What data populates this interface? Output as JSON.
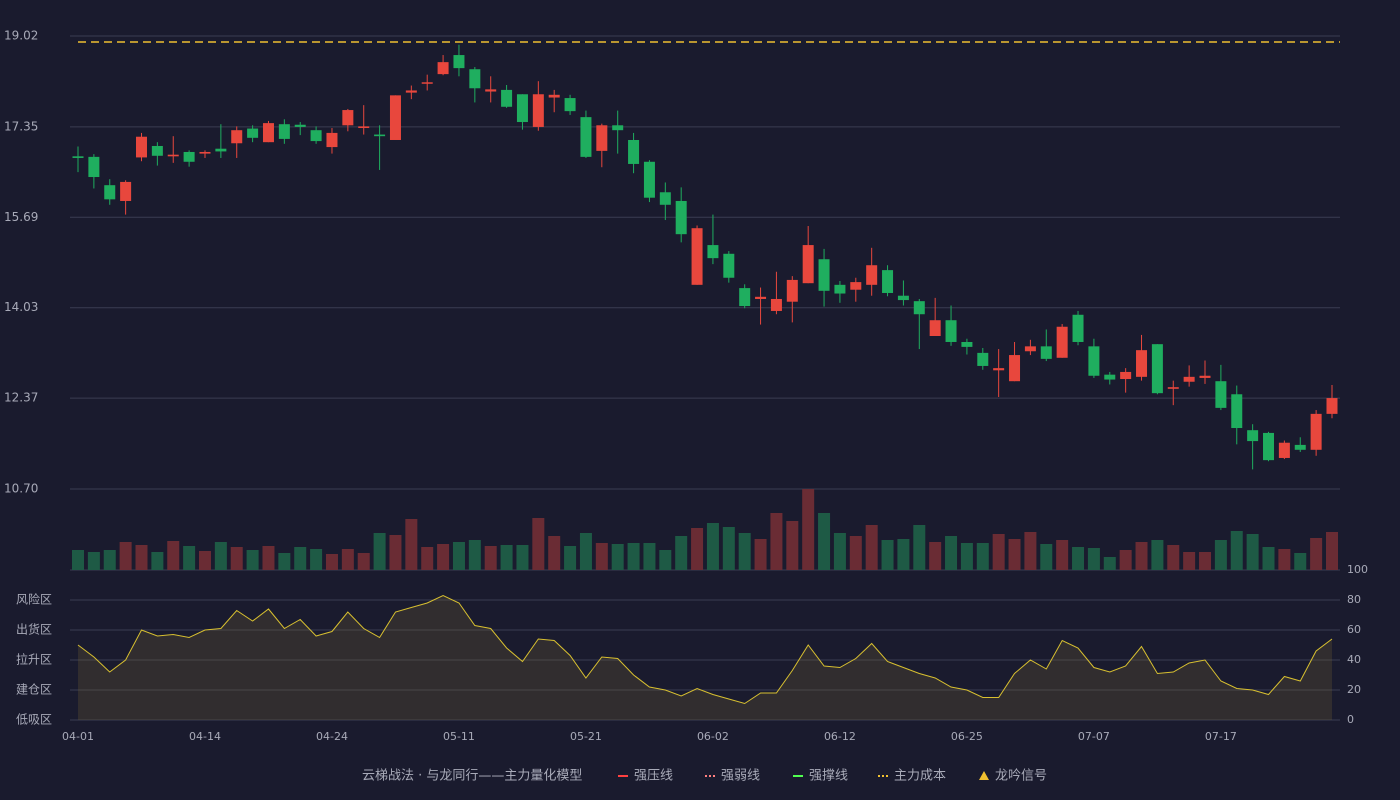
{
  "chart_data": {
    "type": "candlestick",
    "categories": [
      "04-01",
      null,
      null,
      null,
      null,
      null,
      null,
      null,
      "04-14",
      null,
      null,
      null,
      null,
      null,
      null,
      null,
      "04-24",
      null,
      null,
      null,
      null,
      null,
      null,
      null,
      "05-11",
      null,
      null,
      null,
      null,
      null,
      null,
      null,
      "05-21",
      null,
      null,
      null,
      null,
      null,
      null,
      null,
      "06-02",
      null,
      null,
      null,
      null,
      null,
      null,
      null,
      "06-12",
      null,
      null,
      null,
      null,
      null,
      null,
      null,
      "06-25",
      null,
      null,
      null,
      null,
      null,
      null,
      null,
      "07-07",
      null,
      null,
      null,
      null,
      null,
      null,
      null,
      "07-17",
      null,
      null,
      null,
      null,
      null,
      null,
      null
    ],
    "open": [
      16.81,
      16.8,
      16.28,
      15.99,
      16.79,
      17.0,
      16.81,
      16.89,
      16.86,
      16.95,
      17.05,
      17.32,
      17.07,
      17.4,
      17.39,
      17.29,
      16.98,
      17.38,
      17.33,
      17.21,
      17.11,
      17.98,
      18.15,
      18.32,
      18.67,
      18.41,
      18.0,
      18.03,
      17.95,
      17.35,
      17.89,
      17.88,
      17.53,
      16.91,
      17.38,
      17.11,
      16.71,
      16.15,
      15.99,
      14.45,
      15.18,
      15.02,
      14.39,
      14.19,
      13.97,
      14.14,
      14.48,
      14.92,
      14.45,
      14.36,
      14.45,
      14.72,
      14.25,
      14.15,
      13.51,
      13.8,
      13.4,
      13.2,
      12.88,
      12.68,
      13.23,
      13.32,
      13.11,
      13.9,
      13.32,
      12.8,
      12.72,
      12.76,
      13.36,
      12.54,
      12.67,
      12.74,
      12.68,
      12.44,
      11.78,
      11.73,
      11.27,
      11.51,
      11.42,
      12.08
    ],
    "high": [
      16.99,
      16.85,
      16.39,
      16.37,
      17.24,
      17.07,
      17.18,
      16.92,
      16.92,
      17.4,
      17.36,
      17.38,
      17.46,
      17.49,
      17.44,
      17.36,
      17.33,
      17.68,
      17.75,
      17.38,
      17.93,
      18.11,
      18.31,
      18.67,
      18.86,
      18.45,
      18.28,
      18.12,
      17.95,
      18.19,
      18.03,
      17.94,
      17.65,
      17.41,
      17.65,
      17.24,
      16.74,
      16.33,
      16.24,
      15.54,
      15.74,
      15.07,
      14.46,
      14.4,
      14.69,
      14.61,
      15.53,
      15.11,
      14.52,
      14.58,
      15.13,
      14.81,
      14.53,
      14.19,
      14.21,
      14.07,
      13.46,
      13.29,
      13.27,
      13.4,
      13.44,
      13.63,
      13.73,
      13.97,
      13.46,
      12.85,
      12.92,
      13.53,
      13.36,
      12.69,
      12.97,
      13.06,
      12.98,
      12.6,
      11.89,
      11.75,
      11.59,
      11.65,
      12.15,
      12.61
    ],
    "low": [
      16.52,
      16.22,
      15.92,
      15.74,
      16.72,
      16.64,
      16.69,
      16.62,
      16.78,
      16.78,
      16.78,
      17.07,
      17.07,
      17.04,
      17.2,
      17.04,
      16.86,
      17.27,
      17.21,
      16.56,
      17.11,
      17.86,
      18.02,
      18.3,
      18.28,
      17.8,
      17.8,
      17.7,
      17.3,
      17.28,
      17.62,
      17.57,
      16.78,
      16.61,
      16.86,
      16.5,
      15.97,
      15.64,
      15.23,
      14.45,
      14.83,
      14.49,
      14.02,
      13.72,
      13.91,
      13.76,
      14.48,
      14.05,
      14.12,
      14.14,
      14.25,
      14.24,
      14.07,
      13.27,
      13.51,
      13.33,
      13.17,
      12.89,
      12.39,
      12.68,
      13.16,
      13.05,
      13.11,
      13.34,
      12.74,
      12.62,
      12.47,
      12.69,
      12.44,
      12.24,
      12.58,
      12.63,
      12.15,
      11.52,
      11.06,
      11.21,
      11.25,
      11.38,
      11.31,
      12.0
    ],
    "close": [
      16.78,
      16.43,
      16.02,
      16.34,
      17.17,
      16.82,
      16.84,
      16.71,
      16.89,
      16.9,
      17.29,
      17.15,
      17.42,
      17.13,
      17.35,
      17.09,
      17.24,
      17.66,
      17.36,
      17.18,
      17.93,
      18.02,
      18.17,
      18.54,
      18.43,
      18.06,
      18.04,
      17.72,
      17.44,
      17.95,
      17.94,
      17.64,
      16.8,
      17.38,
      17.29,
      16.67,
      16.05,
      15.92,
      15.38,
      15.49,
      14.94,
      14.58,
      14.06,
      14.23,
      14.19,
      14.54,
      15.18,
      14.34,
      14.29,
      14.5,
      14.81,
      14.3,
      14.17,
      13.91,
      13.8,
      13.4,
      13.31,
      12.96,
      12.92,
      13.16,
      13.32,
      13.09,
      13.68,
      13.4,
      12.78,
      12.71,
      12.85,
      13.25,
      12.46,
      12.57,
      12.76,
      12.78,
      12.19,
      11.82,
      11.58,
      11.23,
      11.55,
      11.42,
      12.08,
      12.37
    ],
    "volume": [
      20,
      18,
      20,
      28,
      25,
      18,
      29,
      24,
      19,
      28,
      23,
      20,
      24,
      17,
      23,
      21,
      16,
      21,
      17,
      37,
      35,
      51,
      23,
      26,
      28,
      30,
      24,
      25,
      25,
      52,
      34,
      24,
      37,
      27,
      26,
      27,
      27,
      20,
      34,
      42,
      47,
      43,
      37,
      31,
      57,
      49,
      81,
      57,
      37,
      34,
      45,
      30,
      31,
      45,
      28,
      34,
      27,
      27,
      36,
      31,
      38,
      26,
      30,
      23,
      22,
      13,
      20,
      28,
      30,
      25,
      18,
      18,
      30,
      39,
      36,
      23,
      21,
      17,
      32,
      38
    ],
    "oscillator": [
      50,
      42,
      32,
      40,
      60,
      56,
      57,
      55,
      60,
      61,
      73,
      66,
      74,
      61,
      67,
      56,
      59,
      72,
      61,
      55,
      72,
      75,
      78,
      83,
      78,
      63,
      61,
      48,
      39,
      54,
      53,
      43,
      28,
      42,
      41,
      30,
      22,
      20,
      16,
      21,
      17,
      14,
      11,
      18,
      18,
      33,
      50,
      36,
      35,
      41,
      51,
      39,
      35,
      31,
      28,
      22,
      20,
      15,
      15,
      31,
      40,
      34,
      53,
      48,
      35,
      32,
      36,
      49,
      31,
      32,
      38,
      40,
      26,
      21,
      20,
      17,
      29,
      26,
      46,
      54
    ],
    "up_color": "#e8473d",
    "down_color": "#1fae5f",
    "volume_up_color": "#6a2c34",
    "volume_down_color": "#1e5a45",
    "oscillator_color": "#d8c030",
    "ylim": [
      10.7,
      19.02
    ],
    "yticks": [
      {
        "value": 10.7,
        "label": "10.70"
      },
      12.37,
      14.03,
      15.69,
      17.35,
      19.02
    ],
    "oscillator_lim": [
      0,
      100
    ],
    "oscillator_ticks": [
      0,
      20,
      40,
      60,
      80,
      100
    ],
    "oscillator_tick_colors": [
      "#e8473d",
      "#e8473d",
      "#4a8cf0",
      "#e040e0",
      "#f0a030",
      "#40e040"
    ],
    "zones": [
      {
        "label": "风险区",
        "value": 80,
        "color": "#f0a030"
      },
      {
        "label": "出货区",
        "value": 60,
        "color": "#e040e0"
      },
      {
        "label": "拉升区",
        "value": 40,
        "color": "#4a8cf0"
      },
      {
        "label": "建仓区",
        "value": 20,
        "color": "#e8473d"
      },
      {
        "label": "低吸区",
        "value": 0,
        "color": "#e8473d"
      }
    ],
    "cost_line": 18.91,
    "legend_title": "云梯战法 · 与龙同行——主力量化模型",
    "legend": [
      {
        "name": "强压线",
        "color": "#ff4040",
        "style": "solid"
      },
      {
        "name": "强弱线",
        "color": "#ff8080",
        "style": "dashed"
      },
      {
        "name": "强撑线",
        "color": "#50ff50",
        "style": "solid"
      },
      {
        "name": "主力成本",
        "color": "#f0c030",
        "style": "dashed"
      },
      {
        "name": "龙吟信号",
        "color": "#f0c030",
        "style": "triangle"
      }
    ],
    "grid": true
  }
}
